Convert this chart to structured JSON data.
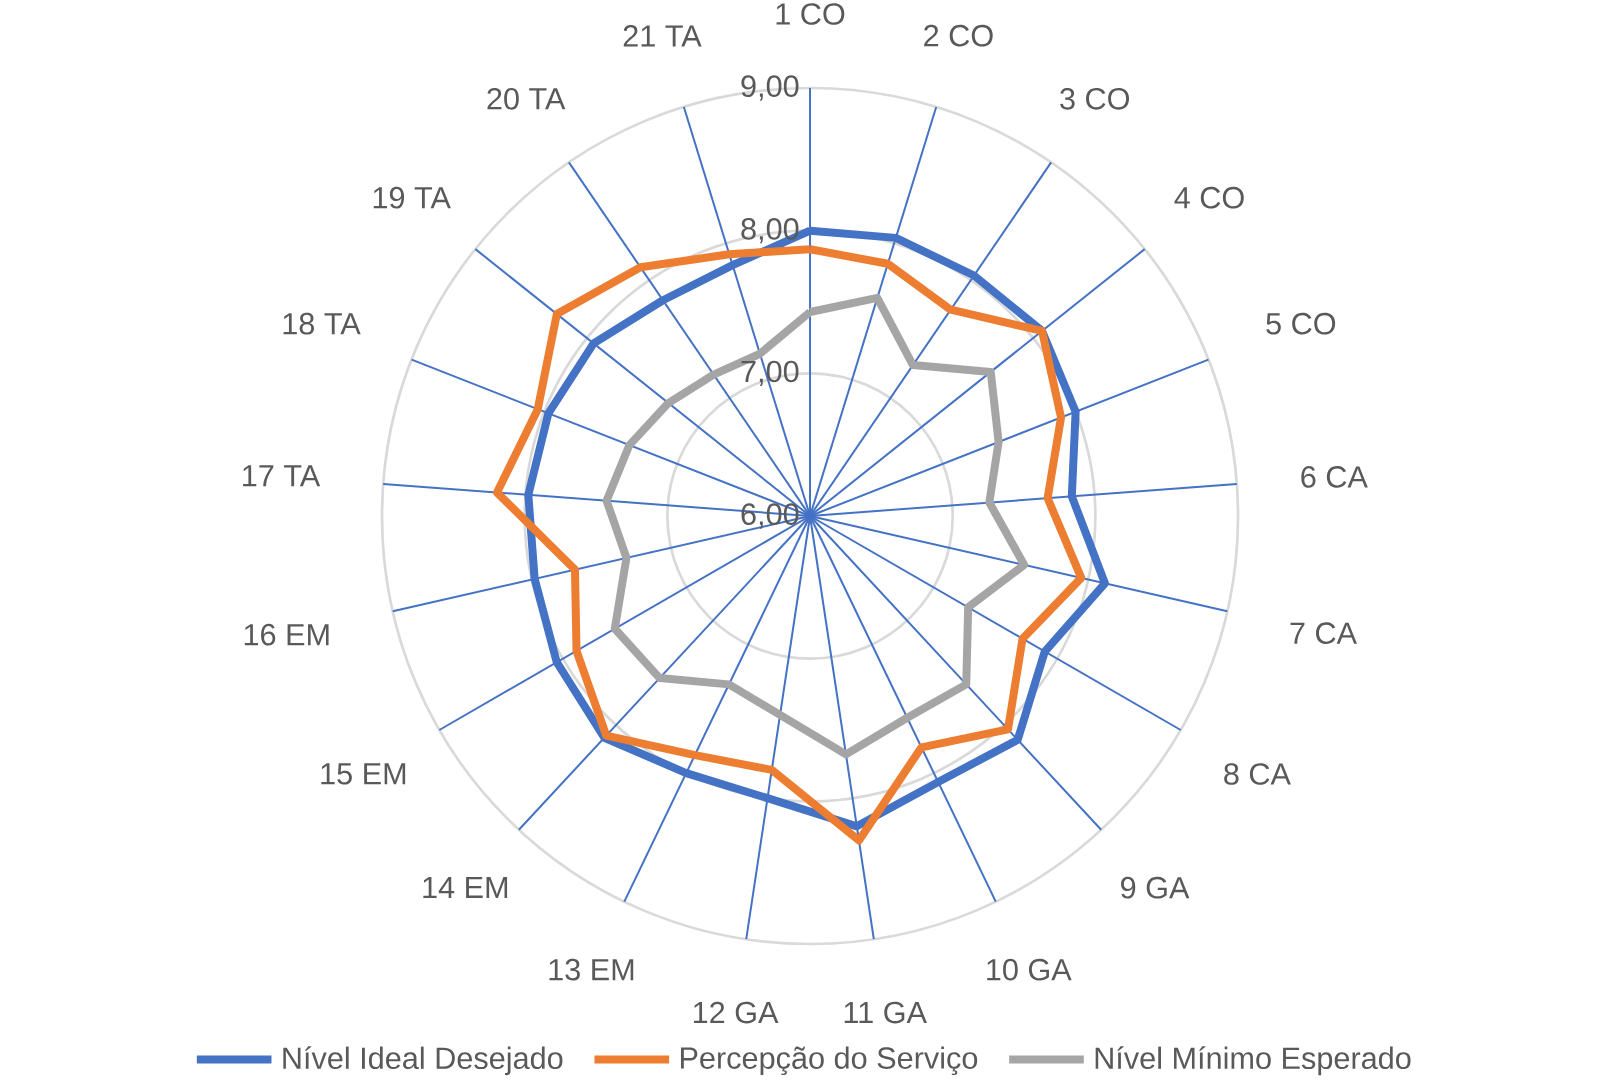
{
  "chart_data": {
    "type": "radar",
    "categories": [
      "1 CO",
      "2 CO",
      "3 CO",
      "4 CO",
      "5 CO",
      "6 CA",
      "7 CA",
      "8 CA",
      "9 GA",
      "10 GA",
      "11 GA",
      "12 GA",
      "13 EM",
      "14 EM",
      "15 EM",
      "16 EM",
      "17 TA",
      "18 TA",
      "19 TA",
      "20 TA",
      "21 TA"
    ],
    "series": [
      {
        "name": "Nível Ideal Desejado",
        "color": "#4472c4",
        "values": [
          8.0,
          8.04,
          8.04,
          8.08,
          8.0,
          7.84,
          8.12,
          7.9,
          8.14,
          8.07,
          8.2,
          8.0,
          8.0,
          8.12,
          8.05,
          7.98,
          7.98,
          7.97,
          7.94,
          7.83,
          7.84
        ]
      },
      {
        "name": "Percepção do Serviço",
        "color": "#ed7d31",
        "values": [
          7.87,
          7.85,
          7.75,
          8.08,
          7.89,
          7.67,
          7.95,
          7.72,
          8.04,
          7.8,
          8.3,
          7.8,
          7.86,
          8.1,
          7.89,
          7.69,
          8.2,
          8.05,
          8.27,
          8.11,
          7.92
        ]
      },
      {
        "name": "Nível Mínimo Esperado",
        "color": "#a5a5a5",
        "values": [
          7.43,
          7.6,
          7.28,
          7.62,
          7.42,
          7.26,
          7.54,
          7.28,
          7.61,
          7.57,
          7.69,
          7.41,
          7.31,
          7.55,
          7.58,
          7.32,
          7.43,
          7.36,
          7.27,
          7.2,
          7.19
        ]
      }
    ],
    "ylim": [
      6,
      9
    ],
    "yticks": [
      {
        "value": 6,
        "label": "6,00"
      },
      {
        "value": 7,
        "label": "7,00"
      },
      {
        "value": 8,
        "label": "8,00"
      },
      {
        "value": 9,
        "label": "9,00"
      }
    ],
    "grid": true,
    "legend": "bottom"
  }
}
